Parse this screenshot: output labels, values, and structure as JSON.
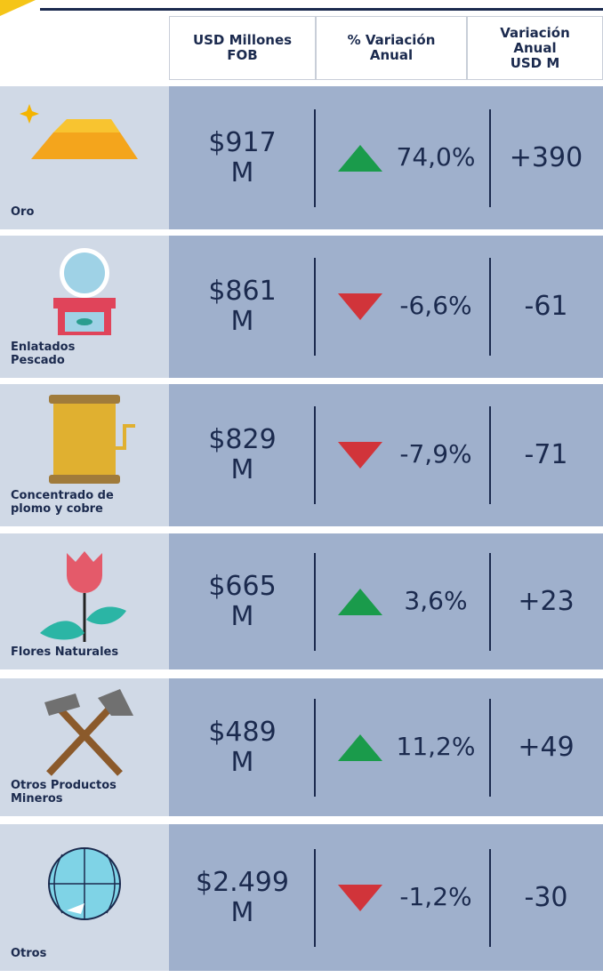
{
  "table": {
    "columns": [
      "USD Millones\nFOB",
      "% Variación\nAnual",
      "Variación\nAnual\nUSD M"
    ],
    "rows": [
      {
        "label": "Oro",
        "value": "$917\nM",
        "variation": "74,0%",
        "trend": "up",
        "annual": "+390"
      },
      {
        "label": "Enlatados\nPescado",
        "value": "$861\nM",
        "variation": "-6,6%",
        "trend": "down",
        "annual": "-61"
      },
      {
        "label": "Concentrado de\nplomo y cobre",
        "value": "$829\nM",
        "variation": "-7,9%",
        "trend": "down",
        "annual": "-71"
      },
      {
        "label": "Flores Naturales",
        "value": "$665\nM",
        "variation": "3,6%",
        "trend": "up",
        "annual": "+23"
      },
      {
        "label": "Otros Productos\nMineros",
        "value": "$489\nM",
        "variation": "11,2%",
        "trend": "up",
        "annual": "+49"
      },
      {
        "label": "Otros",
        "value": "$2.499\nM",
        "variation": "-1,2%",
        "trend": "down",
        "annual": "-30"
      }
    ],
    "trend_colors": {
      "up": "#1a9b4b",
      "down": "#d1343a"
    }
  }
}
